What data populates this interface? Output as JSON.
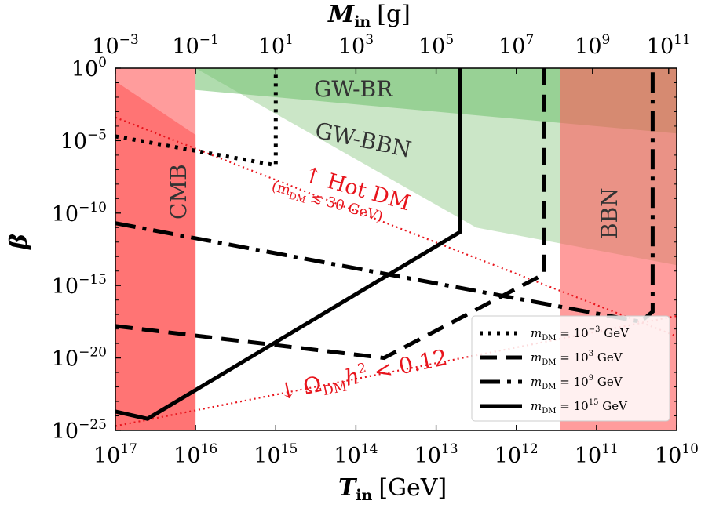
{
  "chart_data": {
    "type": "line",
    "xlabel": "T_in [GeV]",
    "xlabel_main": "T",
    "xlabel_sub": "in",
    "xlabel_unit": "[GeV]",
    "x2label_main": "M",
    "x2label_sub": "in",
    "x2label_unit": "[g]",
    "ylabel": "β",
    "xscale": "log",
    "yscale": "log",
    "xlim_log10": [
      17,
      10
    ],
    "ylim_log10": [
      -25,
      0
    ],
    "x_ticks": [
      {
        "base": "10",
        "exp": "17"
      },
      {
        "base": "10",
        "exp": "16"
      },
      {
        "base": "10",
        "exp": "15"
      },
      {
        "base": "10",
        "exp": "14"
      },
      {
        "base": "10",
        "exp": "13"
      },
      {
        "base": "10",
        "exp": "12"
      },
      {
        "base": "10",
        "exp": "11"
      },
      {
        "base": "10",
        "exp": "10"
      }
    ],
    "x_tick_log10": [
      17,
      16,
      15,
      14,
      13,
      12,
      11,
      10
    ],
    "y_ticks": [
      {
        "base": "10",
        "exp": "0"
      },
      {
        "base": "10",
        "exp": "−5"
      },
      {
        "base": "10",
        "exp": "−10"
      },
      {
        "base": "10",
        "exp": "−15"
      },
      {
        "base": "10",
        "exp": "−20"
      },
      {
        "base": "10",
        "exp": "−25"
      }
    ],
    "y_tick_log10": [
      0,
      -5,
      -10,
      -15,
      -20,
      -25
    ],
    "top_ticks": [
      {
        "base": "10",
        "exp": "−3"
      },
      {
        "base": "10",
        "exp": "−1"
      },
      {
        "base": "10",
        "exp": "1"
      },
      {
        "base": "10",
        "exp": "3"
      },
      {
        "base": "10",
        "exp": "5"
      },
      {
        "base": "10",
        "exp": "7"
      },
      {
        "base": "10",
        "exp": "9"
      },
      {
        "base": "10",
        "exp": "11"
      }
    ],
    "top_tick_log10_T": [
      17,
      16,
      15,
      14,
      13,
      12,
      11.05,
      10.1
    ],
    "regions": [
      {
        "name": "GW-BBN",
        "label": "GW-BBN",
        "color": "#a8d5a2",
        "alpha": 0.6,
        "polygon_log10": [
          [
            16,
            0
          ],
          [
            10,
            0
          ],
          [
            10,
            -13.6
          ],
          [
            12.5,
            -11
          ]
        ]
      },
      {
        "name": "GW-BR",
        "label": "GW-BR",
        "color": "#6fbf6c",
        "alpha": 0.55,
        "polygon_log10": [
          [
            16,
            0
          ],
          [
            10,
            0
          ],
          [
            10,
            -4.5
          ],
          [
            16,
            -1.5
          ]
        ]
      },
      {
        "name": "CMB",
        "label": "CMB",
        "color": "#ff5a5a",
        "alpha": 0.6,
        "polygon_log10": [
          [
            17,
            -0.9
          ],
          [
            16,
            -4.6
          ],
          [
            16,
            -25
          ],
          [
            17,
            -25
          ]
        ]
      },
      {
        "name": "CMB-extra",
        "label": "",
        "color": "#ff5a5a",
        "alpha": 0.6,
        "polygon_log10": [
          [
            17,
            0
          ],
          [
            16,
            0
          ],
          [
            16,
            -25
          ],
          [
            17,
            -25
          ]
        ]
      },
      {
        "name": "BBN",
        "label": "BBN",
        "color": "#ff5a5a",
        "alpha": 0.6,
        "polygon_log10": [
          [
            11.45,
            0
          ],
          [
            10,
            0
          ],
          [
            10,
            -25
          ],
          [
            11.45,
            -25
          ]
        ]
      }
    ],
    "annotations": {
      "hot_dm_text": "↑ Hot DM",
      "hot_dm_sub_pre": "(m",
      "hot_dm_sub_sub": "DM",
      "hot_dm_sub_post": " ≲ 30 GeV)",
      "relic_text_pre": "↓ Ω",
      "relic_sub": "DM",
      "relic_mid": "h",
      "relic_sup": "2",
      "relic_post": " < 0.12"
    },
    "constraint_lines": [
      {
        "name": "hot-dm-bound",
        "color": "#e8141c",
        "style": "dotted",
        "points_log10": [
          [
            17,
            -3.4
          ],
          [
            10,
            -18.5
          ]
        ]
      },
      {
        "name": "relic-bound",
        "color": "#e8141c",
        "style": "dotted",
        "points_log10": [
          [
            17,
            -24.7
          ],
          [
            10,
            -17.1
          ]
        ]
      }
    ],
    "series": [
      {
        "name": "m_DM = 10^-3 GeV",
        "label_pre": "m",
        "label_sub": "DM",
        "label_eq": " = 10",
        "label_sup": "−3",
        "label_unit": " GeV",
        "style": "dotted",
        "width": 5,
        "points_log10": [
          [
            17,
            -4.7
          ],
          [
            15,
            -6.7
          ],
          [
            15,
            0
          ]
        ]
      },
      {
        "name": "m_DM = 10^3 GeV",
        "label_pre": "m",
        "label_sub": "DM",
        "label_eq": " = 10",
        "label_sup": "3",
        "label_unit": " GeV",
        "style": "dashed",
        "width": 5,
        "points_log10": [
          [
            17,
            -17.8
          ],
          [
            13.65,
            -20
          ],
          [
            11.65,
            -14.2
          ],
          [
            11.65,
            0
          ]
        ]
      },
      {
        "name": "m_DM = 10^9 GeV",
        "label_pre": "m",
        "label_sub": "DM",
        "label_eq": " = 10",
        "label_sup": "9",
        "label_unit": " GeV",
        "style": "dashdot",
        "width": 5,
        "points_log10": [
          [
            17,
            -10.7
          ],
          [
            10.45,
            -17.5
          ],
          [
            10.3,
            -16.8
          ],
          [
            10.3,
            0
          ]
        ]
      },
      {
        "name": "m_DM = 10^15 GeV",
        "label_pre": "m",
        "label_sub": "DM",
        "label_eq": " = 10",
        "label_sup": "15",
        "label_unit": " GeV",
        "style": "solid",
        "width": 5,
        "points_log10": [
          [
            17,
            -23.7
          ],
          [
            16.6,
            -24.2
          ],
          [
            12.7,
            -11.3
          ],
          [
            12.7,
            0
          ]
        ]
      }
    ],
    "legend_placement": "bottom-right"
  }
}
